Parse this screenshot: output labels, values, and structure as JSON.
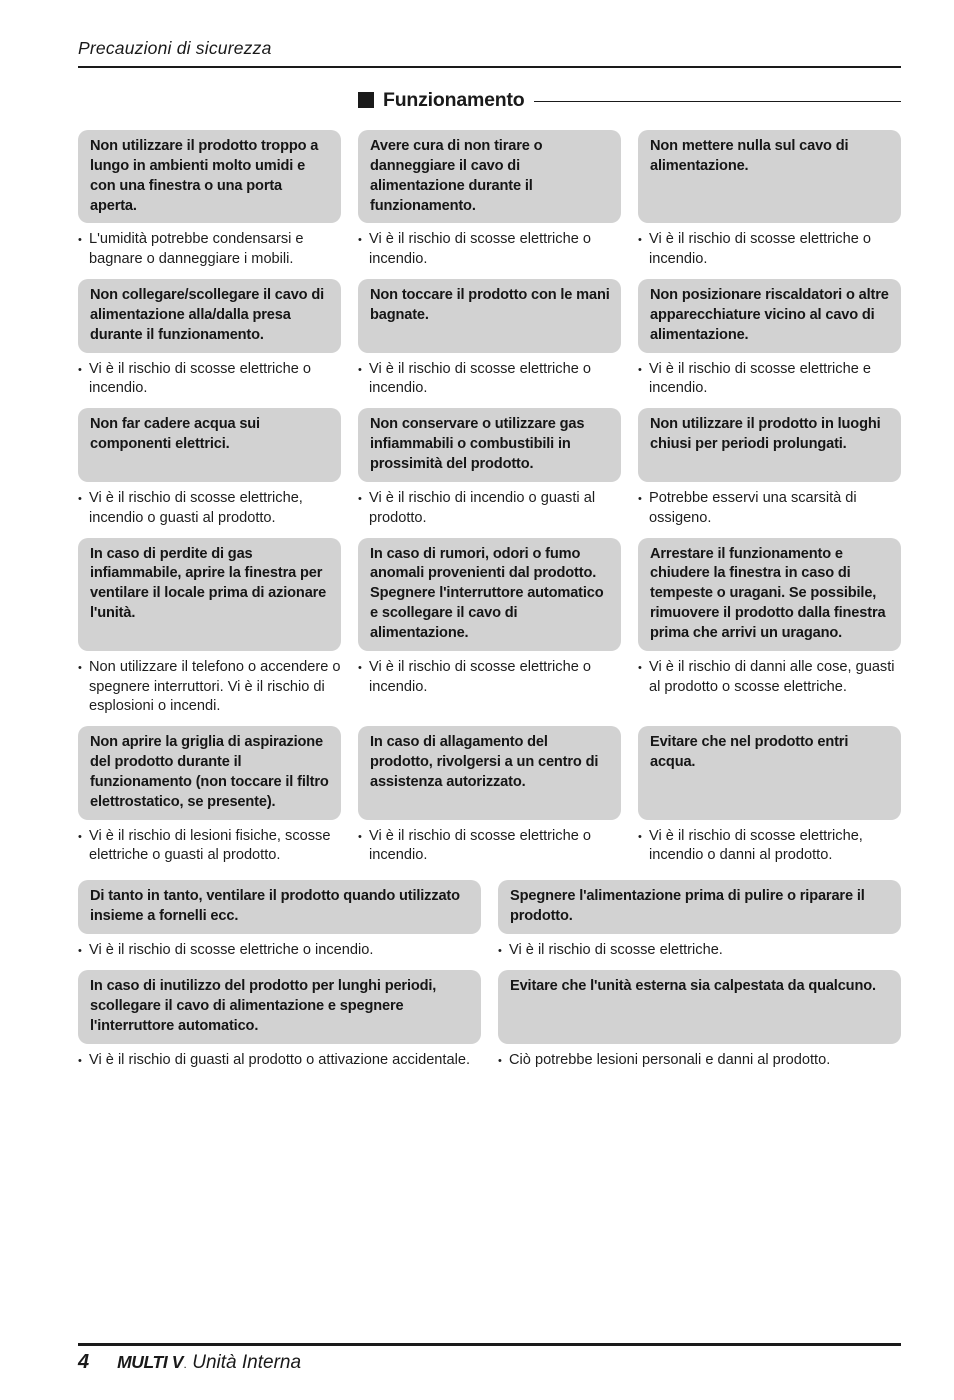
{
  "header": {
    "title": "Precauzioni di sicurezza"
  },
  "section": {
    "marker_icon": "black-square",
    "title": "Funzionamento"
  },
  "precautions3": {
    "rows": [
      {
        "cells": [
          {
            "heading": "Non utilizzare il prodotto troppo a lungo in ambienti molto umidi e con una finestra o una porta aperta.",
            "bullets": [
              "L'umidità potrebbe condensarsi e bagnare o danneggiare i mobili."
            ]
          },
          {
            "heading": "Avere cura di non tirare o danneggiare il cavo di alimentazione durante il funzionamento.",
            "bullets": [
              "Vi è il rischio di scosse elettriche o incendio."
            ]
          },
          {
            "heading": "Non mettere nulla sul cavo di alimentazione.",
            "bullets": [
              "Vi è il rischio di scosse elettriche o incendio."
            ]
          }
        ]
      },
      {
        "cells": [
          {
            "heading": "Non collegare/scollegare il cavo di alimentazione alla/dalla presa durante il funzionamento.",
            "bullets": [
              "Vi è il rischio di scosse elettriche o incendio."
            ]
          },
          {
            "heading": "Non toccare il prodotto con le mani bagnate.",
            "bullets": [
              "Vi è il rischio di scosse elettriche o incendio."
            ]
          },
          {
            "heading": "Non posizionare riscaldatori o altre apparecchiature vicino al cavo di alimentazione.",
            "bullets": [
              "Vi è il rischio di scosse elettriche e incendio."
            ]
          }
        ]
      },
      {
        "cells": [
          {
            "heading": "Non far cadere acqua sui componenti elettrici.",
            "bullets": [
              "Vi è il rischio di scosse elettriche, incendio o guasti al prodotto."
            ]
          },
          {
            "heading": "Non conservare o utilizzare gas infiammabili o combustibili in prossimità del prodotto.",
            "bullets": [
              "Vi è il rischio di incendio o guasti al prodotto."
            ]
          },
          {
            "heading": "Non utilizzare il prodotto in luoghi chiusi per periodi prolungati.",
            "bullets": [
              "Potrebbe esservi una scarsità di ossigeno."
            ]
          }
        ]
      },
      {
        "cells": [
          {
            "heading": "In caso di perdite di gas infiammabile, aprire la finestra per ventilare il locale prima di azionare l'unità.",
            "bullets": [
              "Non utilizzare il telefono o accendere o spegnere interruttori. Vi è il rischio di esplosioni o incendi."
            ]
          },
          {
            "heading": "In caso di rumori, odori o fumo anomali provenienti dal prodotto. Spegnere l'interruttore automatico e scollegare il cavo di alimentazione.",
            "bullets": [
              "Vi è il rischio di scosse elettriche o incendio."
            ]
          },
          {
            "heading": "Arrestare il funzionamento e chiudere la finestra in caso di tempeste o uragani. Se possibile, rimuovere il prodotto dalla finestra prima che arrivi un uragano.",
            "bullets": [
              "Vi è il rischio di danni alle cose, guasti al prodotto o scosse elettriche."
            ]
          }
        ]
      },
      {
        "cells": [
          {
            "heading": "Non aprire la griglia di aspirazione del prodotto durante il funzionamento (non toccare il filtro elettrostatico, se presente).",
            "bullets": [
              "Vi è il rischio di lesioni fisiche, scosse elettriche o guasti al prodotto."
            ]
          },
          {
            "heading": "In caso di allagamento del prodotto, rivolgersi a un centro di assistenza autorizzato.",
            "bullets": [
              "Vi è il rischio di scosse elettriche o incendio."
            ]
          },
          {
            "heading": "Evitare che nel prodotto entri acqua.",
            "bullets": [
              "Vi è il rischio di scosse elettriche, incendio o danni al prodotto."
            ]
          }
        ]
      }
    ]
  },
  "precautions2": {
    "rows": [
      {
        "cells": [
          {
            "heading": "Di tanto in tanto, ventilare il prodotto quando utilizzato insieme a fornelli ecc.",
            "bullets": [
              "Vi è il rischio di scosse elettriche o incendio."
            ]
          },
          {
            "heading": "Spegnere l'alimentazione prima di pulire o riparare il prodotto.",
            "bullets": [
              "Vi è il rischio di scosse elettriche."
            ]
          }
        ]
      },
      {
        "cells": [
          {
            "heading": "In caso di inutilizzo del prodotto per lunghi periodi, scollegare il cavo di alimentazione e spegnere l'interruttore automatico.",
            "bullets": [
              "Vi è il rischio di guasti al prodotto o attivazione accidentale."
            ]
          },
          {
            "heading": "Evitare che l'unità esterna sia calpestata da qualcuno.",
            "bullets": [
              "Ciò potrebbe lesioni personali e danni al prodotto."
            ]
          }
        ]
      }
    ]
  },
  "footer": {
    "page_number": "4",
    "brand": "MULTI V",
    "brand_mark": ".",
    "model": "Unità Interna"
  },
  "colors": {
    "box_fill": "#d2d2d2",
    "text": "#1a1a1a",
    "background": "#ffffff"
  }
}
